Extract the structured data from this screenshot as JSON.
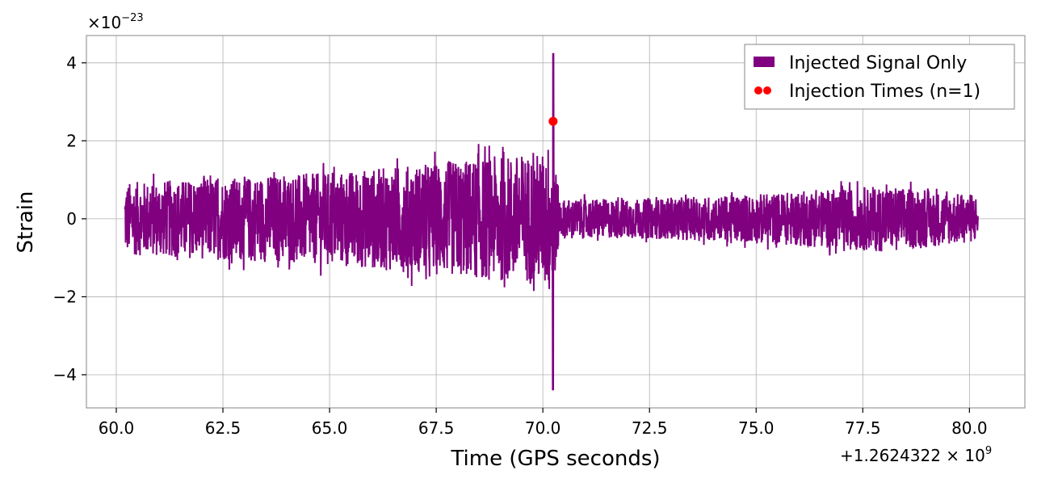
{
  "chart_data": {
    "type": "line",
    "xlabel": "Time (GPS seconds)",
    "ylabel": "Strain",
    "y_scale_prefix": "×10",
    "y_scale_exponent": "−23",
    "x_offset_prefix": "+1.2624322 × 10",
    "x_offset_exponent": "9",
    "xlim": [
      59.3,
      81.3
    ],
    "ylim": [
      -4.85,
      4.7
    ],
    "x_ticks": [
      60.0,
      62.5,
      65.0,
      67.5,
      70.0,
      72.5,
      75.0,
      77.5,
      80.0
    ],
    "x_tick_labels": [
      "60.0",
      "62.5",
      "65.0",
      "67.5",
      "70.0",
      "72.5",
      "75.0",
      "77.5",
      "80.0"
    ],
    "y_ticks": [
      -4,
      -2,
      0,
      2,
      4
    ],
    "y_tick_labels": [
      "−4",
      "−2",
      "0",
      "2",
      "4"
    ],
    "grid": true,
    "legend_position": "top-right",
    "series": [
      {
        "name": "Injected Signal Only",
        "color": "#800080",
        "x_range": [
          60.2,
          80.2
        ],
        "envelope": [
          {
            "x": 60.2,
            "amp": 1.1
          },
          {
            "x": 62.5,
            "amp": 1.25
          },
          {
            "x": 65.0,
            "amp": 1.4
          },
          {
            "x": 67.5,
            "amp": 1.7
          },
          {
            "x": 69.0,
            "amp": 1.9
          },
          {
            "x": 70.0,
            "amp": 2.0
          },
          {
            "x": 70.2,
            "amp": 2.5
          },
          {
            "x": 70.4,
            "amp": 0.6
          },
          {
            "x": 72.5,
            "amp": 0.6
          },
          {
            "x": 75.0,
            "amp": 0.75
          },
          {
            "x": 78.0,
            "amp": 1.0
          },
          {
            "x": 80.2,
            "amp": 0.7
          }
        ],
        "spike": {
          "x": 70.24,
          "max": 4.25,
          "min": -4.4
        }
      }
    ],
    "markers": {
      "name": "Injection Times (n=1)",
      "color": "#ff0000",
      "points": [
        {
          "x": 70.24,
          "y": 2.5
        }
      ]
    }
  }
}
